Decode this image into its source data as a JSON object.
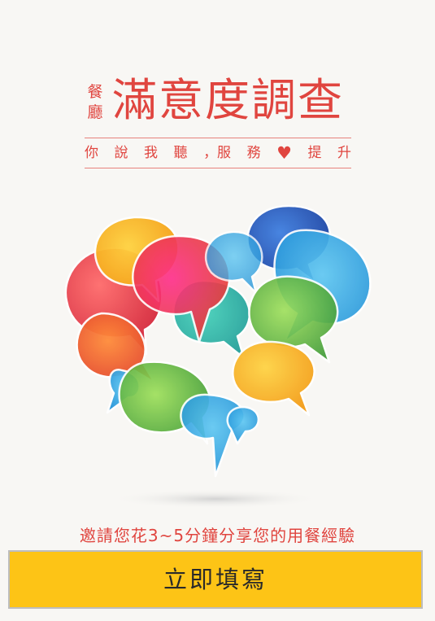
{
  "header": {
    "prefix_line1": "餐",
    "prefix_line2": "廳",
    "title": "滿意度調查",
    "slogan_1": "你",
    "slogan_2": "說",
    "slogan_3": "我",
    "slogan_4": "聽",
    "slogan_5": "，服",
    "slogan_6": "務",
    "slogan_7": "提",
    "slogan_8": "升",
    "heart_icon": "heart-icon",
    "accent_color": "#e0453f"
  },
  "illustration": {
    "icon": "speech-bubble-heart-illustration"
  },
  "invite_text": "邀請您花3~5分鐘分享您的用餐經驗",
  "action": {
    "button_label": "立即填寫",
    "button_color": "#fdc416"
  }
}
